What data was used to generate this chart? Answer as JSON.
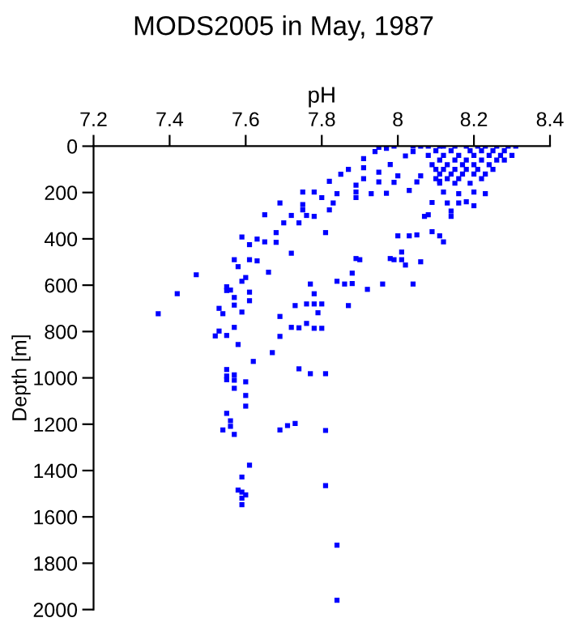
{
  "chart_data": {
    "type": "scatter",
    "title": "MODS2005 in May, 1987",
    "xlabel": "pH",
    "ylabel": "Depth [m]",
    "xlim": [
      7.2,
      8.4
    ],
    "xticks": [
      7.2,
      7.4,
      7.6,
      7.8,
      8,
      8.2,
      8.4
    ],
    "ylim": [
      2000,
      0
    ],
    "yticks": [
      0,
      200,
      400,
      600,
      800,
      1000,
      1200,
      1400,
      1600,
      1800,
      2000
    ],
    "marker": "square",
    "series": [
      {
        "color": "#0000ff",
        "x": [
          7.37,
          7.42,
          7.47,
          7.52,
          7.53,
          7.53,
          7.54,
          7.55,
          7.55,
          7.55,
          7.56,
          7.57,
          7.57,
          7.57,
          7.57,
          7.58,
          7.58,
          7.59,
          7.59,
          7.59,
          7.6,
          7.61,
          7.61,
          7.61,
          7.61,
          7.62,
          7.63,
          7.63,
          7.65,
          7.65,
          7.66,
          7.67,
          7.68,
          7.68,
          7.69,
          7.69,
          7.69,
          7.7,
          7.72,
          7.72,
          7.72,
          7.73,
          7.74,
          7.74,
          7.74,
          7.75,
          7.75,
          7.75,
          7.76,
          7.76,
          7.76,
          7.77,
          7.77,
          7.78,
          7.78,
          7.78,
          7.78,
          7.78,
          7.79,
          7.8,
          7.8,
          7.8,
          7.81,
          7.81,
          7.82,
          7.82,
          7.83,
          7.84,
          7.84,
          7.85,
          7.86,
          7.87,
          7.87,
          7.88,
          7.88,
          7.89,
          7.89,
          7.89,
          7.89,
          7.9,
          7.91,
          7.91,
          7.91,
          7.92,
          7.93,
          7.94,
          7.95,
          7.95,
          7.95,
          7.96,
          7.97,
          7.97,
          7.98,
          7.98,
          7.99,
          7.99,
          7.99,
          8.0,
          8.0,
          8.01,
          8.01,
          8.02,
          8.02,
          8.03,
          8.03,
          8.04,
          8.04,
          8.05,
          8.05,
          8.06,
          8.06,
          8.07,
          8.08,
          8.09,
          8.09,
          8.11,
          8.11,
          8.12,
          8.12,
          8.13,
          8.14,
          8.14,
          8.16,
          8.16,
          8.18,
          8.2,
          8.2,
          8.23,
          8.04,
          8.06,
          8.08,
          8.11,
          8.12,
          8.15,
          8.18,
          8.21,
          8.23,
          8.26,
          8.29,
          8.31,
          8.1,
          8.14,
          8.19,
          8.22,
          8.25,
          8.28,
          8.08,
          8.12,
          8.16,
          8.2,
          8.24,
          8.27,
          8.3,
          8.11,
          8.15,
          8.18,
          8.22,
          8.26,
          8.28,
          8.09,
          8.13,
          8.17,
          8.2,
          8.24,
          8.1,
          8.12,
          8.15,
          8.18,
          8.21,
          8.25,
          8.11,
          8.14,
          8.17,
          8.2,
          8.23,
          8.1,
          8.13,
          8.16,
          8.22,
          8.11,
          8.15,
          8.19,
          7.55,
          7.55,
          7.55,
          7.57,
          7.57,
          7.6,
          7.57,
          7.6,
          7.6,
          7.55,
          7.56,
          7.56,
          7.54,
          7.57,
          7.69,
          7.71,
          7.73,
          7.81,
          7.61,
          7.59,
          7.81,
          7.58,
          7.59,
          7.6,
          7.59,
          7.59,
          7.84,
          7.84
        ],
        "values": [
          723,
          637,
          555,
          819,
          700,
          798,
          723,
          817,
          607,
          623,
          621,
          490,
          653,
          686,
          782,
          856,
          520,
          392,
          583,
          716,
          567,
          667,
          425,
          630,
          490,
          929,
          401,
          495,
          413,
          296,
          544,
          891,
          373,
          415,
          245,
          735,
          821,
          331,
          299,
          462,
          782,
          688,
          331,
          784,
          961,
          252,
          198,
          275,
          681,
          299,
          765,
          595,
          982,
          637,
          198,
          681,
          303,
          786,
          719,
          222,
          681,
          786,
          373,
          982,
          275,
          152,
          245,
          583,
          205,
          121,
          595,
          100,
          688,
          548,
          593,
          198,
          222,
          485,
          168,
          490,
          54,
          93,
          140,
          618,
          205,
          23,
          5,
          154,
          112,
          595,
          203,
          9,
          79,
          485,
          490,
          156,
          0,
          387,
          128,
          457,
          490,
          513,
          42,
          191,
          387,
          595,
          23,
          154,
          383,
          499,
          128,
          303,
          296,
          369,
          243,
          387,
          152,
          413,
          198,
          245,
          303,
          280,
          205,
          245,
          240,
          257,
          198,
          205,
          0,
          0,
          0,
          0,
          0,
          0,
          0,
          0,
          0,
          0,
          0,
          0,
          20,
          20,
          20,
          20,
          20,
          20,
          40,
          40,
          40,
          40,
          40,
          40,
          40,
          60,
          60,
          60,
          60,
          60,
          60,
          80,
          80,
          80,
          80,
          80,
          100,
          100,
          100,
          100,
          100,
          100,
          120,
          120,
          120,
          120,
          120,
          140,
          140,
          140,
          140,
          160,
          160,
          160,
          964,
          992,
          1008,
          987,
          1010,
          1017,
          1045,
          1076,
          1122,
          1153,
          1185,
          1209,
          1225,
          1244,
          1225,
          1206,
          1197,
          1227,
          1377,
          1428,
          1465,
          1484,
          1493,
          1505,
          1519,
          1547,
          1722,
          1960
        ]
      }
    ]
  }
}
